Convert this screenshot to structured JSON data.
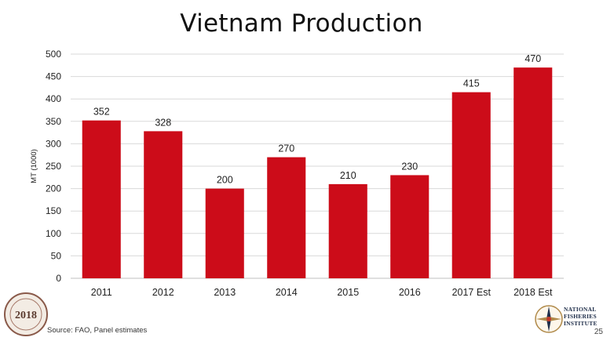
{
  "title": "Vietnam Production",
  "source": "Source: FAO, Panel estimates",
  "page_number": "25",
  "logo_left": {
    "year_text": "2018"
  },
  "logo_right": {
    "lines": [
      "NATIONAL",
      "FISHERIES",
      "INSTITUTE"
    ]
  },
  "colors": {
    "bar": "#cc0c19",
    "grid": "#d9d9d9",
    "text": "#222222"
  },
  "chart_data": {
    "type": "bar",
    "categories": [
      "2011",
      "2012",
      "2013",
      "2014",
      "2015",
      "2016",
      "2017 Est",
      "2018 Est"
    ],
    "values": [
      352,
      328,
      200,
      270,
      210,
      230,
      415,
      470
    ],
    "data_labels": [
      "352",
      "328",
      "200",
      "270",
      "210",
      "230",
      "415",
      "470"
    ],
    "title": "Vietnam Production",
    "xlabel": "",
    "ylabel": "MT (1000)",
    "ylim": [
      0,
      500
    ],
    "yticks": [
      0,
      50,
      100,
      150,
      200,
      250,
      300,
      350,
      400,
      450,
      500
    ],
    "grid": true,
    "legend": "none"
  }
}
